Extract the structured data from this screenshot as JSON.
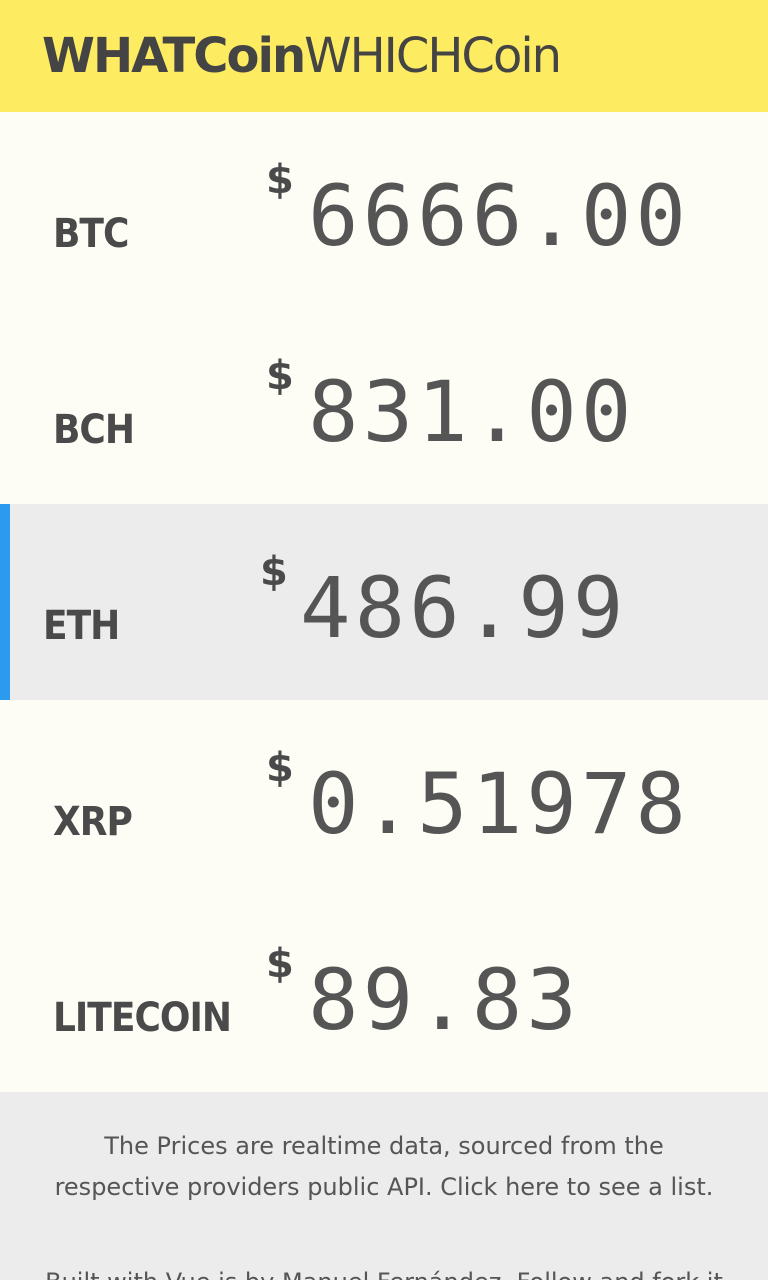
{
  "header": {
    "brand_bold": "WHATCoin",
    "brand_light": "WHICHCoin",
    "bg_color": "#fdeb62"
  },
  "coins": [
    {
      "symbol": "BTC",
      "currency": "$",
      "price": "6666.00",
      "selected": false
    },
    {
      "symbol": "BCH",
      "currency": "$",
      "price": "831.00",
      "selected": false
    },
    {
      "symbol": "ETH",
      "currency": "$",
      "price": "486.99",
      "selected": true
    },
    {
      "symbol": "XRP",
      "currency": "$",
      "price": "0.51978",
      "selected": false
    },
    {
      "symbol": "LITECOIN",
      "currency": "$",
      "price": "89.83",
      "selected": false
    }
  ],
  "footer": {
    "note_text": "The Prices are realtime data, sourced from the respective providers public API.",
    "note_link": "Click here to see a list.",
    "credit_text": "Built with Vue.js by Manuel Fernández. Follow and fork it"
  },
  "colors": {
    "selected_marker": "#2b9bf0",
    "selected_row_bg": "#ececec",
    "row_bg": "#fdfdf6"
  }
}
